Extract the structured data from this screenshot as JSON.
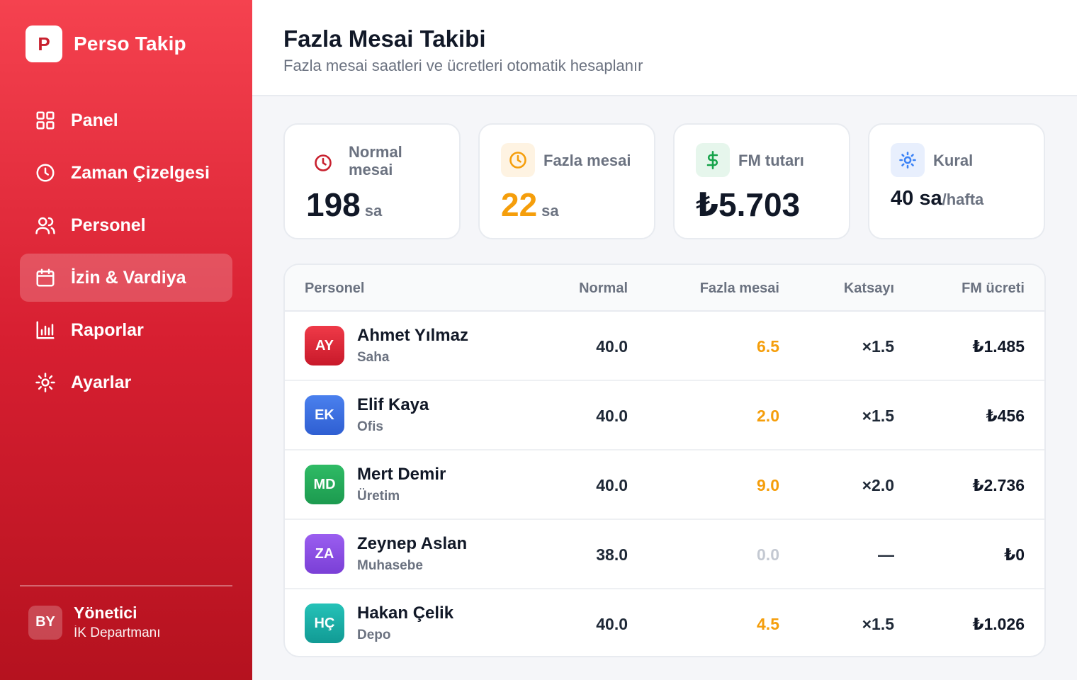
{
  "brand": {
    "logo_letter": "P",
    "name": "Perso Takip"
  },
  "nav": [
    {
      "label": "Panel",
      "icon": "grid-icon",
      "active": false
    },
    {
      "label": "Zaman Çizelgesi",
      "icon": "clock-icon",
      "active": false
    },
    {
      "label": "Personel",
      "icon": "users-icon",
      "active": false
    },
    {
      "label": "İzin & Vardiya",
      "icon": "calendar-icon",
      "active": true
    },
    {
      "label": "Raporlar",
      "icon": "bar-chart-icon",
      "active": false
    },
    {
      "label": "Ayarlar",
      "icon": "gear-icon",
      "active": false
    }
  ],
  "user": {
    "initials": "BY",
    "name": "Yönetici",
    "department": "İK Departmanı"
  },
  "header": {
    "title": "Fazla Mesai Takibi",
    "subtitle": "Fazla mesai saatleri ve ücretleri otomatik hesaplanır"
  },
  "stats": [
    {
      "label": "Normal mesai",
      "value": "198",
      "unit": "sa",
      "icon": "clock-icon",
      "color": "#c8202e"
    },
    {
      "label": "Fazla mesai",
      "value": "22",
      "unit": "sa",
      "icon": "clock-icon",
      "color": "#f59e0b"
    },
    {
      "label": "FM tutarı",
      "value": "₺5.703",
      "unit": "",
      "icon": "dollar-icon",
      "color": "#16a34a"
    },
    {
      "label": "Kural",
      "value": "40 sa",
      "unit": "/hafta",
      "icon": "sun-icon",
      "color": "#3b82f6"
    }
  ],
  "table": {
    "headers": {
      "employee": "Personel",
      "normal": "Normal",
      "overtime": "Fazla mesai",
      "coefficient": "Katsayı",
      "fee": "FM ücreti"
    },
    "rows": [
      {
        "initials": "AY",
        "name": "Ahmet Yılmaz",
        "department": "Saha",
        "normal": "40.0",
        "overtime": "6.5",
        "coefficient": "×1.5",
        "fee": "₺1.485",
        "avatar_color": "#dc2637"
      },
      {
        "initials": "EK",
        "name": "Elif Kaya",
        "department": "Ofis",
        "normal": "40.0",
        "overtime": "2.0",
        "coefficient": "×1.5",
        "fee": "₺456",
        "avatar_color": "#3b6fe0"
      },
      {
        "initials": "MD",
        "name": "Mert Demir",
        "department": "Üretim",
        "normal": "40.0",
        "overtime": "9.0",
        "coefficient": "×2.0",
        "fee": "₺2.736",
        "avatar_color": "#22a35a"
      },
      {
        "initials": "ZA",
        "name": "Zeynep Aslan",
        "department": "Muhasebe",
        "normal": "38.0",
        "overtime": "0.0",
        "coefficient": "—",
        "fee": "₺0",
        "avatar_color": "#8b4fe0"
      },
      {
        "initials": "HÇ",
        "name": "Hakan Çelik",
        "department": "Depo",
        "normal": "40.0",
        "overtime": "4.5",
        "coefficient": "×1.5",
        "fee": "₺1.026",
        "avatar_color": "#14b0a8"
      }
    ]
  }
}
